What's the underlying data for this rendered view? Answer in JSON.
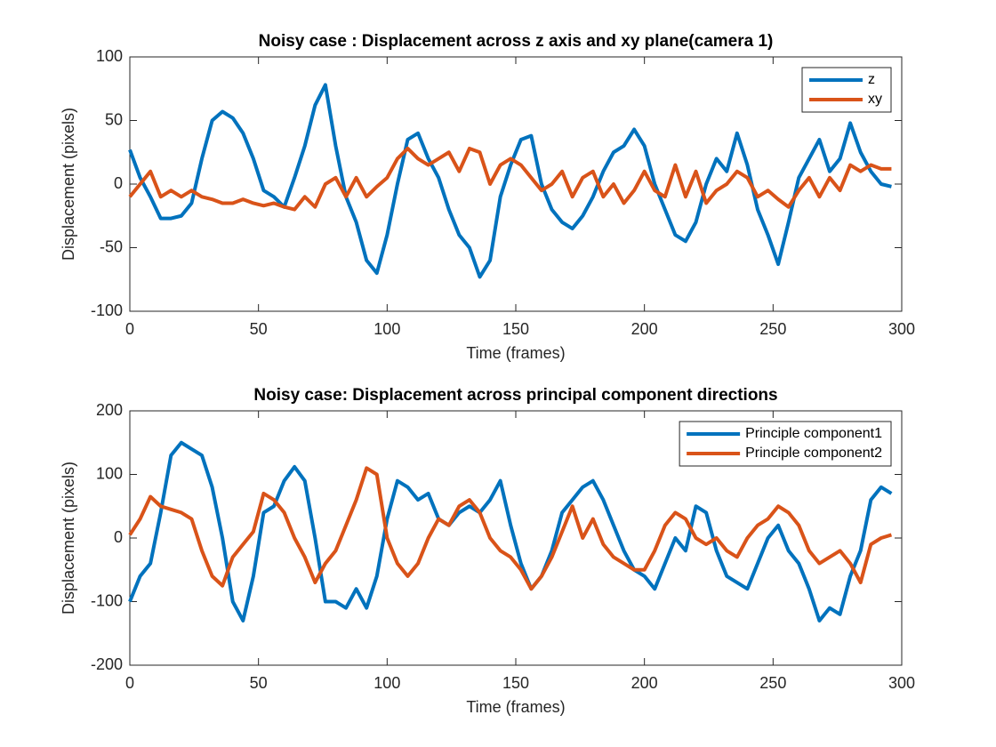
{
  "chart_data": [
    {
      "type": "line",
      "title": "Noisy case : Displacement across z axis and xy plane(camera 1)",
      "x_label": "Time (frames)",
      "y_label": "Displacement (pixels)",
      "x": [
        0,
        4,
        8,
        12,
        16,
        20,
        24,
        28,
        32,
        36,
        40,
        44,
        48,
        52,
        56,
        60,
        64,
        68,
        72,
        76,
        80,
        84,
        88,
        92,
        96,
        100,
        104,
        108,
        112,
        116,
        120,
        124,
        128,
        132,
        136,
        140,
        144,
        148,
        152,
        156,
        160,
        164,
        168,
        172,
        176,
        180,
        184,
        188,
        192,
        196,
        200,
        204,
        208,
        212,
        216,
        220,
        224,
        228,
        232,
        236,
        240,
        244,
        248,
        252,
        256,
        260,
        264,
        268,
        272,
        276,
        280,
        284,
        288,
        292,
        296
      ],
      "series": [
        {
          "name": "z",
          "color": "#0072BD",
          "values": [
            27,
            5,
            -10,
            -27,
            -27,
            -25,
            -15,
            20,
            50,
            57,
            52,
            40,
            20,
            -5,
            -10,
            -18,
            5,
            30,
            62,
            78,
            30,
            -10,
            -30,
            -60,
            -70,
            -40,
            0,
            35,
            40,
            20,
            5,
            -20,
            -40,
            -50,
            -73,
            -60,
            -10,
            15,
            35,
            38,
            0,
            -20,
            -30,
            -35,
            -25,
            -10,
            10,
            25,
            30,
            43,
            30,
            0,
            -20,
            -40,
            -45,
            -30,
            0,
            20,
            10,
            40,
            15,
            -20,
            -40,
            -63,
            -30,
            5,
            20,
            35,
            10,
            20,
            48,
            25,
            10,
            0,
            -2
          ]
        },
        {
          "name": "xy",
          "color": "#D95319",
          "values": [
            -10,
            0,
            10,
            -10,
            -5,
            -10,
            -5,
            -10,
            -12,
            -15,
            -15,
            -12,
            -15,
            -17,
            -15,
            -18,
            -20,
            -10,
            -18,
            0,
            5,
            -10,
            5,
            -10,
            -2,
            5,
            20,
            28,
            20,
            15,
            20,
            25,
            10,
            28,
            25,
            0,
            15,
            20,
            15,
            5,
            -5,
            0,
            10,
            -10,
            5,
            10,
            -10,
            0,
            -15,
            -5,
            10,
            -5,
            -10,
            15,
            -10,
            10,
            -15,
            -5,
            0,
            10,
            5,
            -10,
            -5,
            -12,
            -18,
            -5,
            5,
            -10,
            5,
            -5,
            15,
            10,
            15,
            12,
            12
          ]
        }
      ],
      "xlim": [
        0,
        300
      ],
      "xticks": [
        0,
        50,
        100,
        150,
        200,
        250,
        300
      ],
      "ylim": [
        -100,
        100
      ],
      "yticks": [
        -100,
        -50,
        0,
        50,
        100
      ],
      "legend": "upper right"
    },
    {
      "type": "line",
      "title": "Noisy case: Displacement across principal component directions",
      "x_label": "Time (frames)",
      "y_label": "Displacement (pixels)",
      "x": [
        0,
        4,
        8,
        12,
        16,
        20,
        24,
        28,
        32,
        36,
        40,
        44,
        48,
        52,
        56,
        60,
        64,
        68,
        72,
        76,
        80,
        84,
        88,
        92,
        96,
        100,
        104,
        108,
        112,
        116,
        120,
        124,
        128,
        132,
        136,
        140,
        144,
        148,
        152,
        156,
        160,
        164,
        168,
        172,
        176,
        180,
        184,
        188,
        192,
        196,
        200,
        204,
        208,
        212,
        216,
        220,
        224,
        228,
        232,
        236,
        240,
        244,
        248,
        252,
        256,
        260,
        264,
        268,
        272,
        276,
        280,
        284,
        288,
        292,
        296
      ],
      "series": [
        {
          "name": "Principle component1",
          "color": "#0072BD",
          "values": [
            -100,
            -60,
            -40,
            40,
            130,
            150,
            140,
            130,
            80,
            0,
            -100,
            -130,
            -60,
            40,
            50,
            90,
            112,
            90,
            0,
            -100,
            -100,
            -110,
            -80,
            -110,
            -60,
            30,
            90,
            80,
            60,
            70,
            30,
            20,
            40,
            50,
            40,
            60,
            90,
            20,
            -40,
            -80,
            -60,
            -20,
            40,
            60,
            80,
            90,
            60,
            20,
            -20,
            -50,
            -60,
            -80,
            -40,
            0,
            -20,
            50,
            40,
            -20,
            -60,
            -70,
            -80,
            -40,
            0,
            20,
            -20,
            -40,
            -80,
            -130,
            -110,
            -120,
            -60,
            -20,
            60,
            80,
            70
          ]
        },
        {
          "name": "Principle component2",
          "color": "#D95319",
          "values": [
            5,
            30,
            65,
            50,
            45,
            40,
            30,
            -20,
            -60,
            -75,
            -30,
            -10,
            10,
            70,
            60,
            40,
            0,
            -30,
            -70,
            -40,
            -20,
            20,
            60,
            110,
            100,
            0,
            -40,
            -60,
            -40,
            0,
            30,
            20,
            50,
            60,
            40,
            0,
            -20,
            -30,
            -50,
            -80,
            -60,
            -30,
            10,
            50,
            0,
            30,
            -10,
            -30,
            -40,
            -50,
            -50,
            -20,
            20,
            40,
            30,
            0,
            -10,
            0,
            -20,
            -30,
            0,
            20,
            30,
            50,
            40,
            20,
            -20,
            -40,
            -30,
            -20,
            -40,
            -70,
            -10,
            0,
            5
          ]
        }
      ],
      "xlim": [
        0,
        300
      ],
      "xticks": [
        0,
        50,
        100,
        150,
        200,
        250,
        300
      ],
      "ylim": [
        -200,
        200
      ],
      "yticks": [
        -200,
        -100,
        0,
        100,
        200
      ],
      "legend": "upper right"
    }
  ]
}
